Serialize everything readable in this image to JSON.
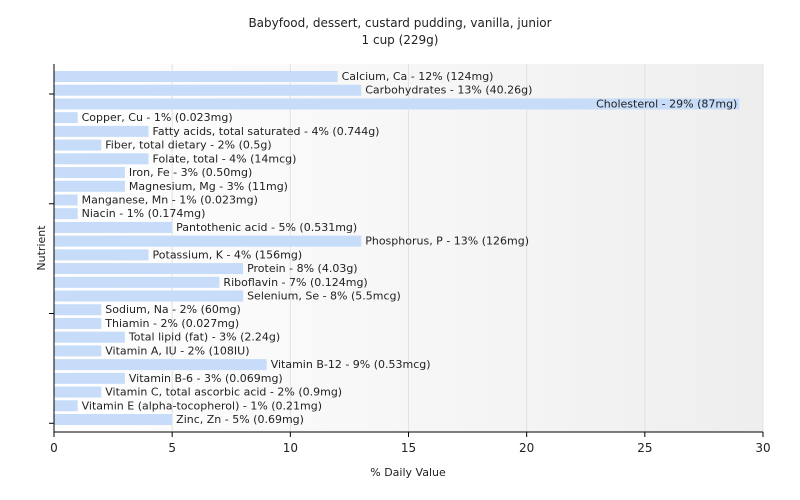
{
  "chart_data": {
    "type": "bar",
    "orientation": "horizontal",
    "title": "Babyfood, dessert, custard pudding, vanilla, junior",
    "subtitle": "1 cup (229g)",
    "xlabel": "% Daily Value",
    "ylabel": "Nutrient",
    "xlim": [
      0,
      30
    ],
    "xticks": [
      0,
      5,
      10,
      15,
      20,
      25,
      30
    ],
    "grid": true,
    "bar_color": "#c6dcf8",
    "categories": [
      "Calcium, Ca",
      "Carbohydrates",
      "Cholesterol",
      "Copper, Cu",
      "Fatty acids, total saturated",
      "Fiber, total dietary",
      "Folate, total",
      "Iron, Fe",
      "Magnesium, Mg",
      "Manganese, Mn",
      "Niacin",
      "Pantothenic acid",
      "Phosphorus, P",
      "Potassium, K",
      "Protein",
      "Riboflavin",
      "Selenium, Se",
      "Sodium, Na",
      "Thiamin",
      "Total lipid (fat)",
      "Vitamin A, IU",
      "Vitamin B-12",
      "Vitamin B-6",
      "Vitamin C, total ascorbic acid",
      "Vitamin E (alpha-tocopherol)",
      "Zinc, Zn"
    ],
    "values": [
      12,
      13,
      29,
      1,
      4,
      2,
      4,
      3,
      3,
      1,
      1,
      5,
      13,
      4,
      8,
      7,
      8,
      2,
      2,
      3,
      2,
      9,
      3,
      2,
      1,
      5
    ],
    "labels": [
      "Calcium, Ca - 12% (124mg)",
      "Carbohydrates - 13% (40.26g)",
      "Cholesterol - 29% (87mg)",
      "Copper, Cu - 1% (0.023mg)",
      "Fatty acids, total saturated - 4% (0.744g)",
      "Fiber, total dietary - 2% (0.5g)",
      "Folate, total - 4% (14mcg)",
      "Iron, Fe - 3% (0.50mg)",
      "Magnesium, Mg - 3% (11mg)",
      "Manganese, Mn - 1% (0.023mg)",
      "Niacin - 1% (0.174mg)",
      "Pantothenic acid - 5% (0.531mg)",
      "Phosphorus, P - 13% (126mg)",
      "Potassium, K - 4% (156mg)",
      "Protein - 8% (4.03g)",
      "Riboflavin - 7% (0.124mg)",
      "Selenium, Se - 8% (5.5mcg)",
      "Sodium, Na - 2% (60mg)",
      "Thiamin - 2% (0.027mg)",
      "Total lipid (fat) - 3% (2.24g)",
      "Vitamin A, IU - 2% (108IU)",
      "Vitamin B-12 - 9% (0.53mcg)",
      "Vitamin B-6 - 3% (0.069mg)",
      "Vitamin C, total ascorbic acid - 2% (0.9mg)",
      "Vitamin E (alpha-tocopherol) - 1% (0.21mg)",
      "Zinc, Zn - 5% (0.69mg)"
    ]
  }
}
